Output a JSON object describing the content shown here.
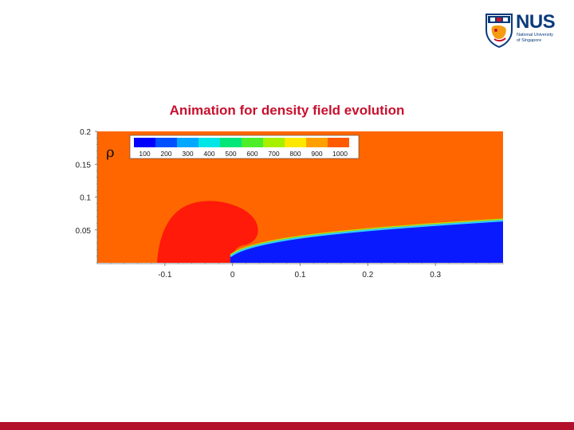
{
  "header": {
    "brand": "NUS",
    "brand_sub_line1": "National University",
    "brand_sub_line2": "of Singapore"
  },
  "title": "Animation for density field evolution",
  "plot": {
    "variable_symbol": "ρ",
    "y_ticks": [
      {
        "value": 0.2,
        "label": "0.2"
      },
      {
        "value": 0.15,
        "label": "0.15"
      },
      {
        "value": 0.1,
        "label": "0.1"
      },
      {
        "value": 0.05,
        "label": "0.05"
      }
    ],
    "x_ticks": [
      {
        "value": -0.1,
        "label": "-0.1"
      },
      {
        "value": 0,
        "label": "0"
      },
      {
        "value": 0.1,
        "label": "0.1"
      },
      {
        "value": 0.2,
        "label": "0.2"
      },
      {
        "value": 0.3,
        "label": "0.3"
      }
    ],
    "x_range": [
      -0.2,
      0.4
    ],
    "y_range": [
      0,
      0.2
    ],
    "colorbar": [
      {
        "label": "100",
        "color": "#0000ff"
      },
      {
        "label": "200",
        "color": "#0050ff"
      },
      {
        "label": "300",
        "color": "#00a8ff"
      },
      {
        "label": "400",
        "color": "#00e6e6"
      },
      {
        "label": "500",
        "color": "#00e678"
      },
      {
        "label": "600",
        "color": "#4cee2a"
      },
      {
        "label": "700",
        "color": "#a8f000"
      },
      {
        "label": "800",
        "color": "#ffe800"
      },
      {
        "label": "900",
        "color": "#ffa000"
      },
      {
        "label": "1000",
        "color": "#ff5a00"
      }
    ],
    "colors": {
      "background": "#ff6600",
      "high_density": "#ff1a0a",
      "low_density": "#0a1aff",
      "shock_layer": "#30d0ff"
    }
  },
  "footer": {
    "bar_color": "#b3112b"
  }
}
